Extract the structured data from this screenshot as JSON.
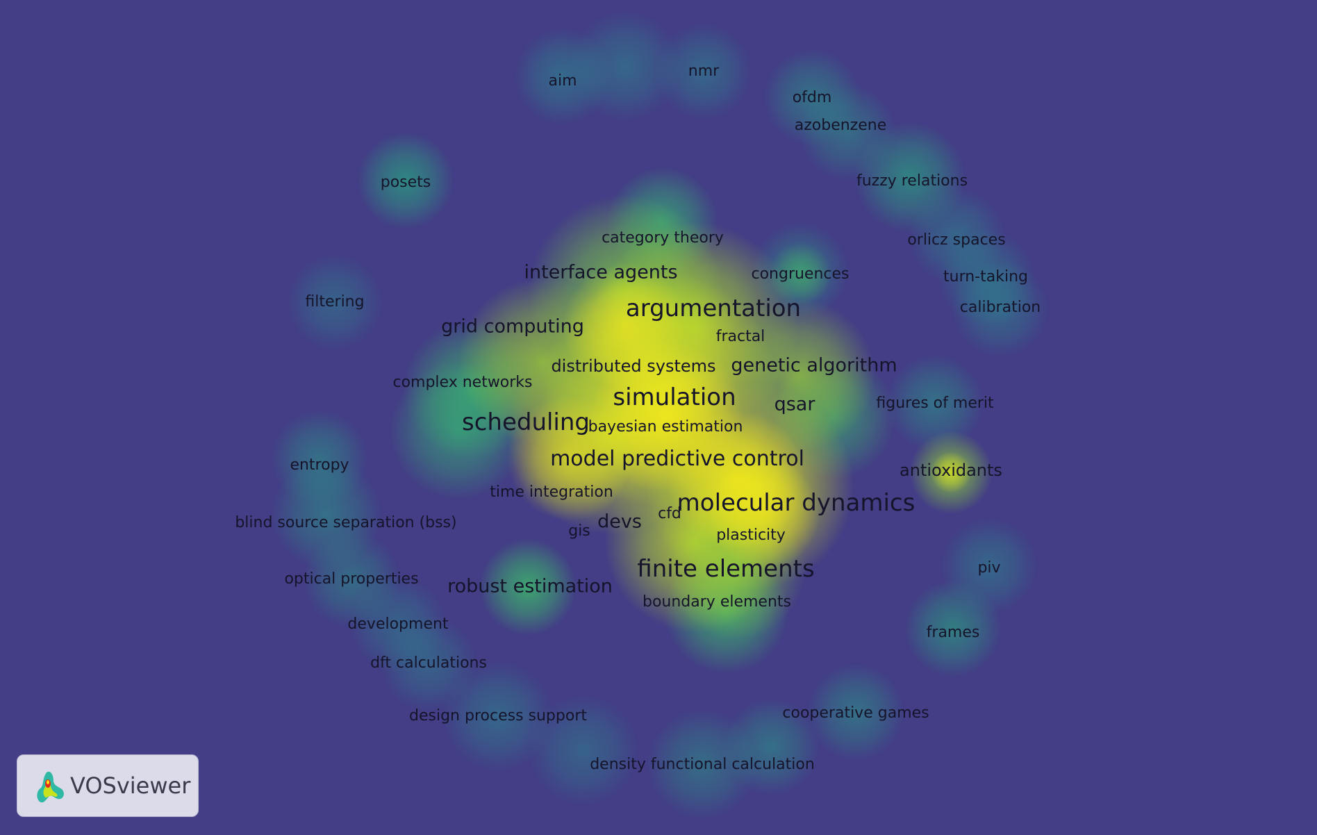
{
  "app": {
    "name": "VOSviewer"
  },
  "colors": {
    "background": "#433e86",
    "density_low": "#3b7d9a",
    "density_mid": "#2bb07f",
    "density_high": "#f2e81c",
    "label_text": "#15142a"
  },
  "terms": [
    {
      "id": "aim",
      "label": "aim",
      "weight": 1
    },
    {
      "id": "nmr",
      "label": "nmr",
      "weight": 1
    },
    {
      "id": "ofdm",
      "label": "ofdm",
      "weight": 1
    },
    {
      "id": "azobenzene",
      "label": "azobenzene",
      "weight": 1
    },
    {
      "id": "posets",
      "label": "posets",
      "weight": 1
    },
    {
      "id": "fuzzy-relations",
      "label": "fuzzy relations",
      "weight": 1
    },
    {
      "id": "category-theory",
      "label": "category theory",
      "weight": 1
    },
    {
      "id": "orlicz-spaces",
      "label": "orlicz spaces",
      "weight": 1
    },
    {
      "id": "interface-agents",
      "label": "interface agents",
      "weight": 2
    },
    {
      "id": "congruences",
      "label": "congruences",
      "weight": 1
    },
    {
      "id": "turn-taking",
      "label": "turn-taking",
      "weight": 1
    },
    {
      "id": "filtering",
      "label": "filtering",
      "weight": 1
    },
    {
      "id": "argumentation",
      "label": "argumentation",
      "weight": 3
    },
    {
      "id": "calibration",
      "label": "calibration",
      "weight": 1
    },
    {
      "id": "grid-computing",
      "label": "grid computing",
      "weight": 2
    },
    {
      "id": "fractal",
      "label": "fractal",
      "weight": 1
    },
    {
      "id": "distributed-systems",
      "label": "distributed systems",
      "weight": 1
    },
    {
      "id": "genetic-algorithm",
      "label": "genetic algorithm",
      "weight": 2
    },
    {
      "id": "complex-networks",
      "label": "complex networks",
      "weight": 1
    },
    {
      "id": "simulation",
      "label": "simulation",
      "weight": 3
    },
    {
      "id": "qsar",
      "label": "qsar",
      "weight": 2
    },
    {
      "id": "figures-of-merit",
      "label": "figures of merit",
      "weight": 1
    },
    {
      "id": "scheduling",
      "label": "scheduling",
      "weight": 3
    },
    {
      "id": "bayesian-estimation",
      "label": "bayesian estimation",
      "weight": 1
    },
    {
      "id": "model-predictive-control",
      "label": "model predictive control",
      "weight": 3
    },
    {
      "id": "entropy",
      "label": "entropy",
      "weight": 1
    },
    {
      "id": "antioxidants",
      "label": "antioxidants",
      "weight": 2
    },
    {
      "id": "time-integration",
      "label": "time integration",
      "weight": 1
    },
    {
      "id": "molecular-dynamics",
      "label": "molecular dynamics",
      "weight": 3
    },
    {
      "id": "cfd",
      "label": "cfd",
      "weight": 1
    },
    {
      "id": "devs",
      "label": "devs",
      "weight": 2
    },
    {
      "id": "blind-source-separation",
      "label": "blind source separation (bss)",
      "weight": 1
    },
    {
      "id": "gis",
      "label": "gis",
      "weight": 1
    },
    {
      "id": "plasticity",
      "label": "plasticity",
      "weight": 1
    },
    {
      "id": "piv",
      "label": "piv",
      "weight": 1
    },
    {
      "id": "finite-elements",
      "label": "finite elements",
      "weight": 3
    },
    {
      "id": "optical-properties",
      "label": "optical properties",
      "weight": 1
    },
    {
      "id": "robust-estimation",
      "label": "robust estimation",
      "weight": 2
    },
    {
      "id": "boundary-elements",
      "label": "boundary elements",
      "weight": 1
    },
    {
      "id": "development",
      "label": "development",
      "weight": 1
    },
    {
      "id": "frames",
      "label": "frames",
      "weight": 1
    },
    {
      "id": "dft-calculations",
      "label": "dft calculations",
      "weight": 1
    },
    {
      "id": "cooperative-games",
      "label": "cooperative games",
      "weight": 1
    },
    {
      "id": "design-process-support",
      "label": "design process support",
      "weight": 1
    },
    {
      "id": "density-functional-calculation",
      "label": "density functional calculation",
      "weight": 1
    }
  ]
}
